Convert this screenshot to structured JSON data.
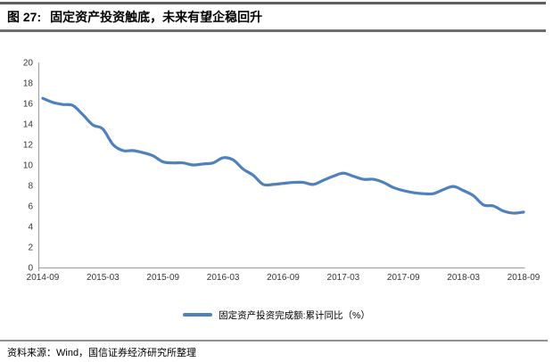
{
  "header": {
    "figure_label": "图 27:",
    "title": "固定资产投资触底，未来有望企稳回升"
  },
  "chart_data": {
    "type": "line",
    "title": "固定资产投资触底，未来有望企稳回升",
    "xlabel": "",
    "ylabel": "",
    "ylim": [
      0,
      20
    ],
    "y_ticks": [
      0,
      2,
      4,
      6,
      8,
      10,
      12,
      14,
      16,
      18,
      20
    ],
    "x_tick_labels": [
      "2014-09",
      "2015-03",
      "2015-09",
      "2016-03",
      "2016-09",
      "2017-03",
      "2017-09",
      "2018-03",
      "2018-09"
    ],
    "grid": false,
    "legend_position": "bottom",
    "axis_color": "#a6a6a6",
    "series": [
      {
        "name": "固定资产投资完成额:累计同比（%）",
        "color": "#4F81BD",
        "x": [
          "2014-09",
          "2014-10",
          "2014-11",
          "2014-12",
          "2015-01",
          "2015-02",
          "2015-03",
          "2015-04",
          "2015-05",
          "2015-06",
          "2015-07",
          "2015-08",
          "2015-09",
          "2015-10",
          "2015-11",
          "2015-12",
          "2016-01",
          "2016-02",
          "2016-03",
          "2016-04",
          "2016-05",
          "2016-06",
          "2016-07",
          "2016-08",
          "2016-09",
          "2016-10",
          "2016-11",
          "2016-12",
          "2017-01",
          "2017-02",
          "2017-03",
          "2017-04",
          "2017-05",
          "2017-06",
          "2017-07",
          "2017-08",
          "2017-09",
          "2017-10",
          "2017-11",
          "2017-12",
          "2018-01",
          "2018-02",
          "2018-03",
          "2018-04",
          "2018-05",
          "2018-06",
          "2018-07",
          "2018-08",
          "2018-09"
        ],
        "values": [
          16.5,
          16.1,
          15.9,
          15.8,
          14.9,
          13.9,
          13.5,
          12.0,
          11.4,
          11.4,
          11.2,
          10.9,
          10.3,
          10.2,
          10.2,
          10.0,
          10.1,
          10.2,
          10.7,
          10.5,
          9.6,
          9.0,
          8.1,
          8.1,
          8.2,
          8.3,
          8.3,
          8.1,
          8.5,
          8.9,
          9.2,
          8.9,
          8.6,
          8.6,
          8.3,
          7.8,
          7.5,
          7.3,
          7.2,
          7.2,
          7.6,
          7.9,
          7.5,
          7.0,
          6.1,
          6.0,
          5.5,
          5.3,
          5.4
        ]
      }
    ]
  },
  "footer": {
    "source": "资料来源：Wind，国信证券经济研究所整理"
  }
}
